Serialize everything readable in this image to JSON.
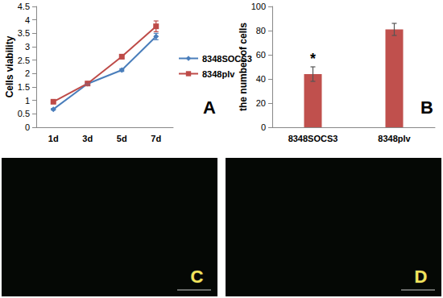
{
  "chart_data": [
    {
      "type": "line",
      "annotations": [
        "A"
      ],
      "y_label": "Cells viability",
      "categories": [
        "1d",
        "3d",
        "5d",
        "7d"
      ],
      "series": [
        {
          "name": "8348SOCS3",
          "color": "#4a7ebb",
          "marker": "diamond",
          "values": [
            0.67,
            1.62,
            2.13,
            3.38
          ],
          "errors": [
            0.03,
            0.03,
            0.05,
            0.12
          ]
        },
        {
          "name": "8348plv",
          "color": "#be4b48",
          "marker": "square",
          "values": [
            0.95,
            1.63,
            2.63,
            3.76
          ],
          "errors": [
            0.03,
            0.03,
            0.08,
            0.2
          ]
        }
      ],
      "ylim": [
        0,
        4.5
      ],
      "yticks": [
        0,
        0.5,
        1,
        1.5,
        2,
        2.5,
        3,
        3.5,
        4,
        4.5
      ],
      "grid": false,
      "legend": "right"
    },
    {
      "type": "bar",
      "annotations": [
        "B"
      ],
      "y_label": "the number of cells",
      "categories": [
        "8348SOCS3",
        "8348plv"
      ],
      "values": [
        44,
        81
      ],
      "errors": [
        6,
        5
      ],
      "value_annotations": [
        "*",
        null
      ],
      "color": "#c0504d",
      "ylim": [
        0,
        100
      ],
      "yticks": [
        0,
        20,
        40,
        60,
        80,
        100
      ],
      "grid": false
    }
  ],
  "images": [
    {
      "label": "C"
    },
    {
      "label": "D"
    }
  ]
}
